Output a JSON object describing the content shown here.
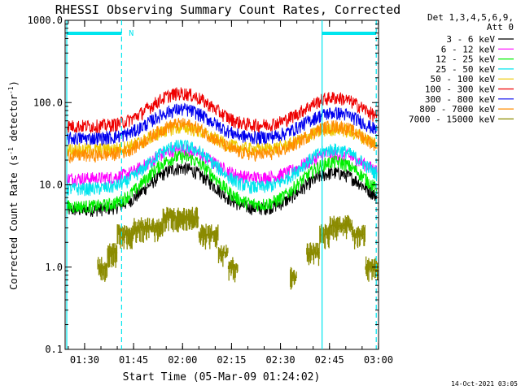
{
  "chart_data": {
    "type": "line",
    "title": "RHESSI Observing Summary Count Rates, Corrected",
    "xlabel": "Start Time (05-Mar-09 01:24:02)",
    "ylabel_main": "Corrected Count Rate (s",
    "ylabel_sup1": "-1",
    "ylabel_mid": " detector",
    "ylabel_sup2": "-1",
    "ylabel_end": ")",
    "y_scale": "log",
    "ylim": [
      0.1,
      1000
    ],
    "xlim_minutes": [
      0,
      96
    ],
    "x_ticks": [
      {
        "minute": 5.97,
        "label": "01:30"
      },
      {
        "minute": 20.97,
        "label": "01:45"
      },
      {
        "minute": 35.97,
        "label": "02:00"
      },
      {
        "minute": 50.97,
        "label": "02:15"
      },
      {
        "minute": 65.97,
        "label": "02:30"
      },
      {
        "minute": 80.97,
        "label": "02:45"
      },
      {
        "minute": 95.97,
        "label": "03:00"
      }
    ],
    "y_ticks": [
      {
        "value": 1000,
        "label": "1000.0"
      },
      {
        "value": 100,
        "label": "100.0"
      },
      {
        "value": 10,
        "label": "10.0"
      },
      {
        "value": 1,
        "label": "1.0"
      },
      {
        "value": 0.1,
        "label": "0.1"
      }
    ],
    "legend_header": [
      "Det 1,3,4,5,6,9,",
      "Att 0"
    ],
    "legend_placement": "right",
    "vertical_lines": [
      {
        "minute": 0.5,
        "color": "#00e5ee",
        "style": "solid"
      },
      {
        "minute": 17.3,
        "color": "#00e5ee",
        "style": "dashed"
      },
      {
        "minute": 78.7,
        "color": "#00e5ee",
        "style": "solid"
      },
      {
        "minute": 95.3,
        "color": "#00e5ee",
        "style": "dashed"
      }
    ],
    "bars_top": [
      {
        "start": 0.5,
        "end": 17.3,
        "color": "#00e5ee"
      },
      {
        "start": 78.7,
        "end": 95.3,
        "color": "#00e5ee"
      }
    ],
    "top_marker": {
      "minute": 19.5,
      "label": "N"
    },
    "series": [
      {
        "name": "3 - 6 keV",
        "color": "#000000",
        "base": 5.0,
        "peaks": [
          16,
          14
        ]
      },
      {
        "name": "6 - 12 keV",
        "color": "#ff00ff",
        "base": 12,
        "peaks": [
          27,
          24
        ]
      },
      {
        "name": "12 - 25 keV",
        "color": "#00ee00",
        "base": 5.5,
        "peaks": [
          22,
          19
        ]
      },
      {
        "name": "25 - 50 keV",
        "color": "#00e5ee",
        "base": 9,
        "peaks": [
          30,
          27
        ]
      },
      {
        "name": "50 - 100 keV",
        "color": "#eec900",
        "base": 27,
        "peaks": [
          50,
          48
        ]
      },
      {
        "name": "100 - 300 keV",
        "color": "#ee0000",
        "base": 52,
        "peaks": [
          130,
          115
        ]
      },
      {
        "name": "300 - 800 keV",
        "color": "#0000ee",
        "base": 37,
        "peaks": [
          83,
          75
        ]
      },
      {
        "name": "800 - 7000 keV",
        "color": "#ff8c00",
        "base": 23,
        "peaks": [
          55,
          52
        ]
      },
      {
        "name": "7000 - 15000 keV",
        "color": "#8b8b00",
        "base": null,
        "peaks": []
      }
    ],
    "olive_segments": [
      {
        "start": 10.0,
        "end": 13.0,
        "value": 1.0
      },
      {
        "start": 13.0,
        "end": 16.0,
        "value": 1.5
      },
      {
        "start": 16.0,
        "end": 21.0,
        "value": 2.5
      },
      {
        "start": 21.0,
        "end": 30.0,
        "value": 3.0
      },
      {
        "start": 30.0,
        "end": 41.0,
        "value": 4.0
      },
      {
        "start": 41.0,
        "end": 47.0,
        "value": 2.5
      },
      {
        "start": 47.0,
        "end": 50.0,
        "value": 1.5
      },
      {
        "start": 50.0,
        "end": 53.0,
        "value": 1.0
      },
      {
        "start": 69.0,
        "end": 71.0,
        "value": 0.75
      },
      {
        "start": 74.0,
        "end": 78.0,
        "value": 1.5
      },
      {
        "start": 78.0,
        "end": 81.0,
        "value": 2.5
      },
      {
        "start": 81.0,
        "end": 88.0,
        "value": 3.2
      },
      {
        "start": 88.0,
        "end": 92.0,
        "value": 2.5
      },
      {
        "start": 92.0,
        "end": 96.0,
        "value": 1.0
      }
    ],
    "peak_centers_minutes": [
      35.5,
      82.5
    ],
    "peak_width_minutes": 11
  },
  "footer_timestamp": "14-Oct-2021 03:05"
}
